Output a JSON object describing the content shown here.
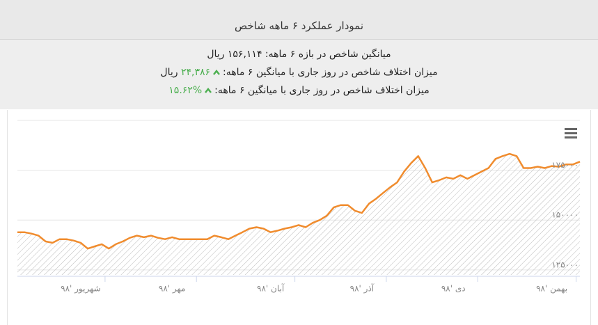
{
  "header": {
    "title": "نمودار عملکرد ۶ ماهه شاخص"
  },
  "stats": {
    "average": {
      "label": "میانگین شاخص در بازه ۶ ماهه:",
      "value": "۱۵۶,۱۱۴ ریال"
    },
    "difference": {
      "label": "میزان اختلاف شاخص در روز جاری با میانگین ۶ ماهه:",
      "value": "۲۴,۳۸۶",
      "unit": "ریال"
    },
    "percent": {
      "label": "میزان اختلاف شاخص در روز جاری با میانگین ۶ ماهه:",
      "value": "%۱۵.۶۲"
    }
  },
  "chart_data": {
    "type": "area",
    "color": "#f08c2e",
    "grid": true,
    "values": [
      143900,
      143900,
      143200,
      142200,
      139300,
      138600,
      140400,
      140400,
      139700,
      138600,
      135700,
      136800,
      137900,
      135700,
      137900,
      139300,
      141100,
      142200,
      141400,
      142200,
      141100,
      140400,
      141400,
      140400,
      140400,
      140400,
      140400,
      140400,
      142200,
      141400,
      140400,
      142200,
      143900,
      145700,
      146400,
      145700,
      143900,
      144700,
      145700,
      146400,
      147500,
      146400,
      148600,
      150000,
      152200,
      156400,
      157500,
      157500,
      154700,
      153600,
      158200,
      160700,
      163600,
      166400,
      168900,
      174300,
      178600,
      182100,
      176100,
      168900,
      170000,
      171400,
      170700,
      172500,
      170700,
      172500,
      174300,
      176100,
      180700,
      182100,
      183200,
      182100,
      176100,
      176100,
      176800,
      176100,
      177100,
      176800,
      177900,
      177900,
      179300
    ],
    "xlim": [
      0,
      80
    ],
    "xticks": [
      {
        "value": 9,
        "label": "شهریور '۹۸"
      },
      {
        "value": 22,
        "label": "مهر '۹۸"
      },
      {
        "value": 36,
        "label": "آبان '۹۸"
      },
      {
        "value": 49,
        "label": "آذر '۹۸"
      },
      {
        "value": 62,
        "label": "دی '۹۸"
      },
      {
        "value": 76,
        "label": "بهمن '۹۸"
      }
    ],
    "ylim": [
      122500,
      200000
    ],
    "yticks": [
      {
        "value": 125000,
        "label": "۱۲۵۰۰۰"
      },
      {
        "value": 150000,
        "label": "۱۵۰۰۰۰"
      },
      {
        "value": 175000,
        "label": "۱۷۵۰۰۰"
      }
    ]
  }
}
